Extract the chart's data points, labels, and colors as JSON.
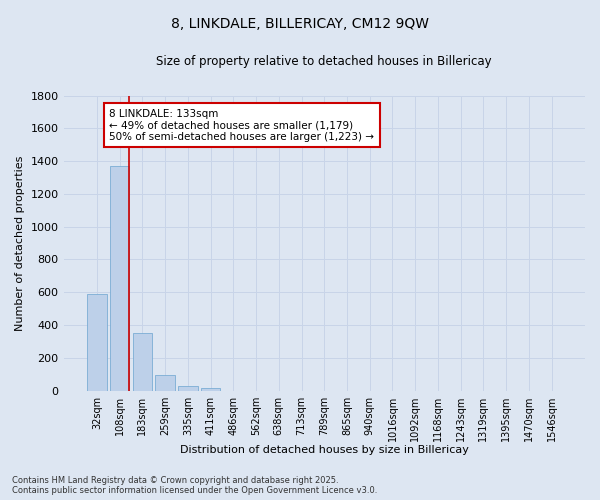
{
  "title": "8, LINKDALE, BILLERICAY, CM12 9QW",
  "subtitle": "Size of property relative to detached houses in Billericay",
  "xlabel": "Distribution of detached houses by size in Billericay",
  "ylabel": "Number of detached properties",
  "bar_labels": [
    "32sqm",
    "108sqm",
    "183sqm",
    "259sqm",
    "335sqm",
    "411sqm",
    "486sqm",
    "562sqm",
    "638sqm",
    "713sqm",
    "789sqm",
    "865sqm",
    "940sqm",
    "1016sqm",
    "1092sqm",
    "1168sqm",
    "1243sqm",
    "1319sqm",
    "1395sqm",
    "1470sqm",
    "1546sqm"
  ],
  "bar_values": [
    590,
    1370,
    350,
    95,
    30,
    15,
    0,
    0,
    0,
    0,
    0,
    0,
    0,
    0,
    0,
    0,
    0,
    0,
    0,
    0,
    0
  ],
  "bar_color": "#bdd0e9",
  "bar_edge_color": "#7badd4",
  "ylim": [
    0,
    1800
  ],
  "yticks": [
    0,
    200,
    400,
    600,
    800,
    1000,
    1200,
    1400,
    1600,
    1800
  ],
  "vline_x": 1.42,
  "vline_color": "#cc0000",
  "annotation_text": "8 LINKDALE: 133sqm\n← 49% of detached houses are smaller (1,179)\n50% of semi-detached houses are larger (1,223) →",
  "annotation_box_color": "#ffffff",
  "annotation_box_edgecolor": "#cc0000",
  "grid_color": "#c8d4e8",
  "background_color": "#dde6f2",
  "footer_line1": "Contains HM Land Registry data © Crown copyright and database right 2025.",
  "footer_line2": "Contains public sector information licensed under the Open Government Licence v3.0."
}
